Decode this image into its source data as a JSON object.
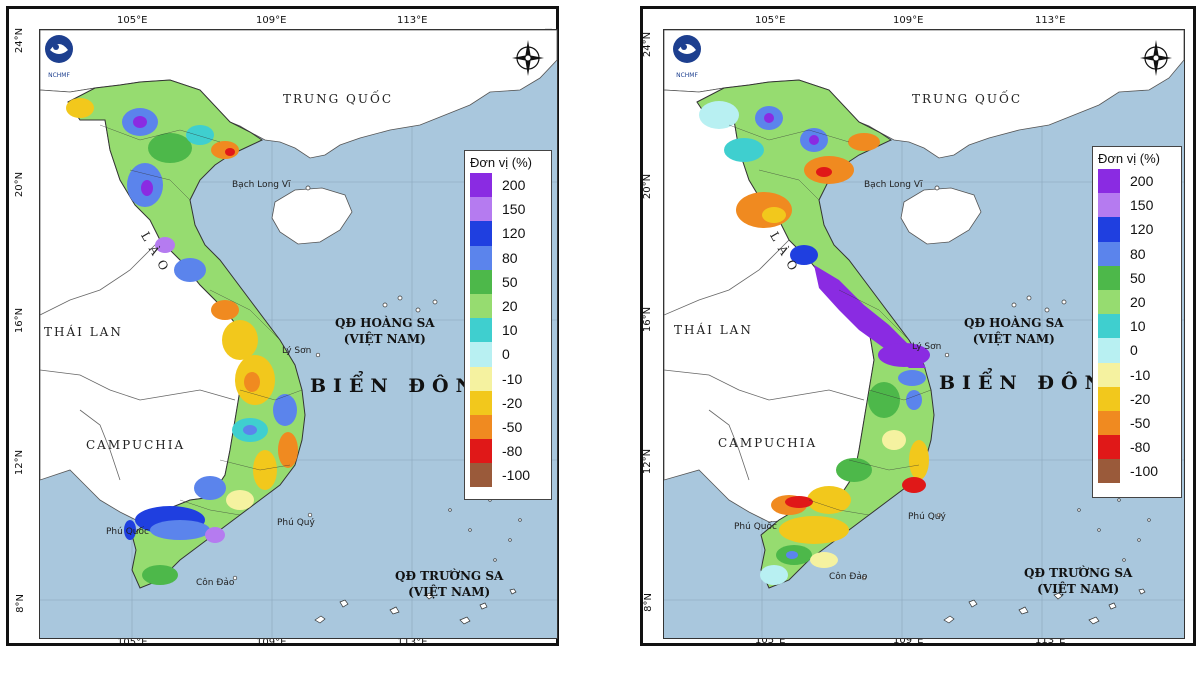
{
  "colors": {
    "sea": "#a9c7dd",
    "land": "#ffffff",
    "c200": "#8a2be2",
    "c150": "#b57bf0",
    "c120": "#1f3fe0",
    "c80": "#5b84ec",
    "c50": "#4db84a",
    "c20": "#96dc70",
    "c10": "#3fcfcf",
    "c0": "#b8f0f2",
    "cm10": "#f5f2a0",
    "cm20": "#f2c81c",
    "cm50": "#f08a20",
    "cm80": "#e01818",
    "cm100": "#9a5a3a"
  },
  "axes": {
    "lon_labels": [
      "105°E",
      "109°E",
      "113°E"
    ],
    "lat_labels": [
      "24°N",
      "20°N",
      "16°N",
      "12°N",
      "8°N"
    ]
  },
  "map_labels": {
    "china": "TRUNG QUỐC",
    "laos": "L À O",
    "thailand": "THÁI LAN",
    "cambodia": "CAMPUCHIA",
    "east_sea": "BIỂN ĐÔNG",
    "hoang_sa_line1": "QĐ HOÀNG SA",
    "hoang_sa_line2": "(VIỆT NAM)",
    "truong_sa_line1": "QĐ TRƯỜNG SA",
    "truong_sa_line2": "(VIỆT NAM)",
    "bach_long_vi": "Bạch Long Vĩ",
    "ly_son": "Lý Sơn",
    "phu_quy": "Phú Quý",
    "phu_quoc": "Phú Quốc",
    "con_dao": "Côn Đảo",
    "logo_text": "NCHMF"
  },
  "legend": {
    "title": "Đơn vị (%)",
    "items": [
      {
        "value": "200",
        "color": "#8a2be2"
      },
      {
        "value": "150",
        "color": "#b57bf0"
      },
      {
        "value": "120",
        "color": "#1f3fe0"
      },
      {
        "value": "80",
        "color": "#5b84ec"
      },
      {
        "value": "50",
        "color": "#4db84a"
      },
      {
        "value": "20",
        "color": "#96dc70"
      },
      {
        "value": "10",
        "color": "#3fcfcf"
      },
      {
        "value": "0",
        "color": "#b8f0f2"
      },
      {
        "value": "-10",
        "color": "#f5f2a0"
      },
      {
        "value": "-20",
        "color": "#f2c81c"
      },
      {
        "value": "-50",
        "color": "#f08a20"
      },
      {
        "value": "-80",
        "color": "#e01818"
      },
      {
        "value": "-100",
        "color": "#9a5a3a"
      }
    ]
  }
}
